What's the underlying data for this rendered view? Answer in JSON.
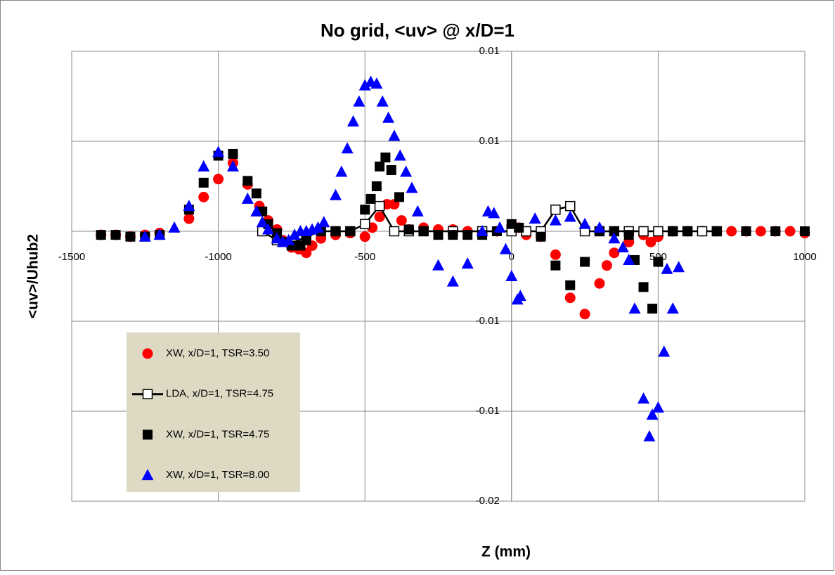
{
  "chart_data": {
    "type": "scatter",
    "title": "No grid, <uv> @ x/D=1",
    "x_label": "Z (mm)",
    "y_label": "<uv>/Uhub2",
    "xlim": [
      -1500,
      1000
    ],
    "xticks": [
      -1500,
      -1000,
      -500,
      0,
      500,
      1000
    ],
    "ylim": [
      -0.015,
      0.01
    ],
    "yticks": [
      {
        "value": 0.01,
        "label": "0.01"
      },
      {
        "value": 0.005,
        "label": "0.01"
      },
      {
        "value": -0.005,
        "label": "-0.01"
      },
      {
        "value": -0.01,
        "label": "-0.01"
      },
      {
        "value": -0.015,
        "label": "-0.02"
      }
    ],
    "grid": true,
    "legend": "lower-left",
    "series": [
      {
        "name": "XW, x/D=1, TSR=3.50",
        "color": "#ff0000",
        "marker": "circle",
        "line": false,
        "x": [
          -1400,
          -1350,
          -1300,
          -1250,
          -1200,
          -1100,
          -1050,
          -1000,
          -950,
          -900,
          -860,
          -830,
          -800,
          -780,
          -750,
          -725,
          -700,
          -680,
          -650,
          -600,
          -550,
          -500,
          -475,
          -450,
          -425,
          -400,
          -375,
          -350,
          -300,
          -250,
          -200,
          -150,
          -100,
          -50,
          0,
          25,
          50,
          100,
          150,
          200,
          250,
          300,
          325,
          350,
          400,
          450,
          475,
          500,
          550,
          600,
          650,
          700,
          750,
          800,
          850,
          900,
          950,
          1000
        ],
        "values": [
          -0.0002,
          -0.0002,
          -0.0003,
          -0.0002,
          -0.0001,
          0.0007,
          0.0019,
          0.0029,
          0.0038,
          0.0026,
          0.0014,
          0.0006,
          0.0001,
          -0.0005,
          -0.0009,
          -0.001,
          -0.0012,
          -0.0008,
          -0.0004,
          -0.0002,
          -0.0001,
          -0.0003,
          0.0002,
          0.0008,
          0.0015,
          0.0015,
          0.0006,
          0.0001,
          0.0002,
          0.0001,
          0.0001,
          0,
          -0.0001,
          0,
          0.0003,
          0.0002,
          -0.0002,
          -0.0003,
          -0.0013,
          -0.0037,
          -0.0046,
          -0.0029,
          -0.0019,
          -0.0012,
          -0.0006,
          -0.0002,
          -0.0006,
          -0.0003,
          0,
          0,
          0,
          0,
          0,
          0,
          0,
          0,
          0,
          -0.0001
        ]
      },
      {
        "name": "LDA, x/D=1, TSR=4.75",
        "color": "#000000",
        "marker": "square-open",
        "line": true,
        "x": [
          -850,
          -800,
          -750,
          -700,
          -650,
          -600,
          -550,
          -500,
          -450,
          -400,
          -350,
          -300,
          -200,
          -100,
          0,
          50,
          100,
          150,
          200,
          250,
          300,
          350,
          400,
          450,
          500,
          550,
          600,
          650,
          700
        ],
        "values": [
          0,
          -0.0005,
          -0.0007,
          -0.0003,
          0,
          0,
          0,
          0.0004,
          0.0014,
          0,
          0,
          0,
          0,
          0,
          0,
          0,
          0,
          0.0012,
          0.0014,
          0,
          0,
          0,
          0,
          0,
          0,
          0,
          0,
          0,
          0
        ]
      },
      {
        "name": "XW, x/D=1, TSR=4.75",
        "color": "#000000",
        "marker": "square",
        "line": false,
        "x": [
          -1400,
          -1350,
          -1300,
          -1250,
          -1200,
          -1100,
          -1050,
          -1000,
          -950,
          -900,
          -870,
          -850,
          -830,
          -800,
          -780,
          -750,
          -720,
          -700,
          -650,
          -600,
          -550,
          -500,
          -480,
          -460,
          -450,
          -430,
          -410,
          -383,
          -350,
          -300,
          -250,
          -200,
          -150,
          -100,
          -50,
          0,
          25,
          100,
          150,
          200,
          250,
          300,
          350,
          400,
          420,
          450,
          480,
          500,
          550,
          600,
          700,
          800,
          900,
          1000
        ],
        "values": [
          -0.0002,
          -0.0002,
          -0.0003,
          -0.0003,
          -0.0002,
          0.0012,
          0.0027,
          0.0042,
          0.0043,
          0.0028,
          0.0021,
          0.0011,
          0.0004,
          -0.0001,
          -0.0006,
          -0.0008,
          -0.0008,
          -0.0005,
          0,
          0,
          0,
          0.0012,
          0.0018,
          0.0025,
          0.0036,
          0.0041,
          0.0034,
          0.0019,
          0.0001,
          0,
          -0.0002,
          -0.0002,
          -0.0002,
          -0.0002,
          0,
          0.0004,
          0.0002,
          -0.0003,
          -0.0019,
          -0.003,
          -0.0017,
          0,
          0,
          -0.0002,
          -0.0016,
          -0.0031,
          -0.0043,
          -0.0017,
          0,
          0,
          0,
          0,
          0,
          0
        ]
      },
      {
        "name": "XW, x/D=1, TSR=8.00",
        "color": "#0000ff",
        "marker": "triangle",
        "line": false,
        "x": [
          -1250,
          -1200,
          -1150,
          -1100,
          -1050,
          -1000,
          -950,
          -900,
          -870,
          -850,
          -830,
          -800,
          -780,
          -760,
          -740,
          -720,
          -700,
          -680,
          -660,
          -640,
          -600,
          -580,
          -560,
          -540,
          -520,
          -500,
          -480,
          -460,
          -440,
          -420,
          -400,
          -380,
          -360,
          -340,
          -320,
          -250,
          -200,
          -150,
          -100,
          -80,
          -60,
          -40,
          -20,
          0,
          20,
          30,
          80,
          150,
          200,
          250,
          300,
          350,
          380,
          400,
          420,
          450,
          470,
          480,
          500,
          520,
          530,
          550,
          570
        ],
        "values": [
          -0.0003,
          -0.0002,
          0.0002,
          0.0014,
          0.0036,
          0.0044,
          0.0036,
          0.0018,
          0.0011,
          0.0005,
          0.0001,
          -0.0004,
          -0.0006,
          -0.0005,
          -0.0002,
          0,
          0,
          0.0001,
          0.0002,
          0.0005,
          0.002,
          0.0033,
          0.0046,
          0.0061,
          0.0072,
          0.0081,
          0.0083,
          0.0082,
          0.0072,
          0.0063,
          0.0053,
          0.0042,
          0.0033,
          0.0024,
          0.0011,
          -0.0019,
          -0.0028,
          -0.0018,
          0,
          0.0011,
          0.001,
          0.0002,
          -0.001,
          -0.0025,
          -0.0038,
          -0.0036,
          0.0007,
          0.0006,
          0.0008,
          0.0004,
          0.0002,
          -0.0004,
          -0.0009,
          -0.0016,
          -0.0043,
          -0.0093,
          -0.0114,
          -0.0102,
          -0.0098,
          -0.0067,
          -0.0021,
          -0.0043,
          -0.002
        ]
      }
    ]
  }
}
